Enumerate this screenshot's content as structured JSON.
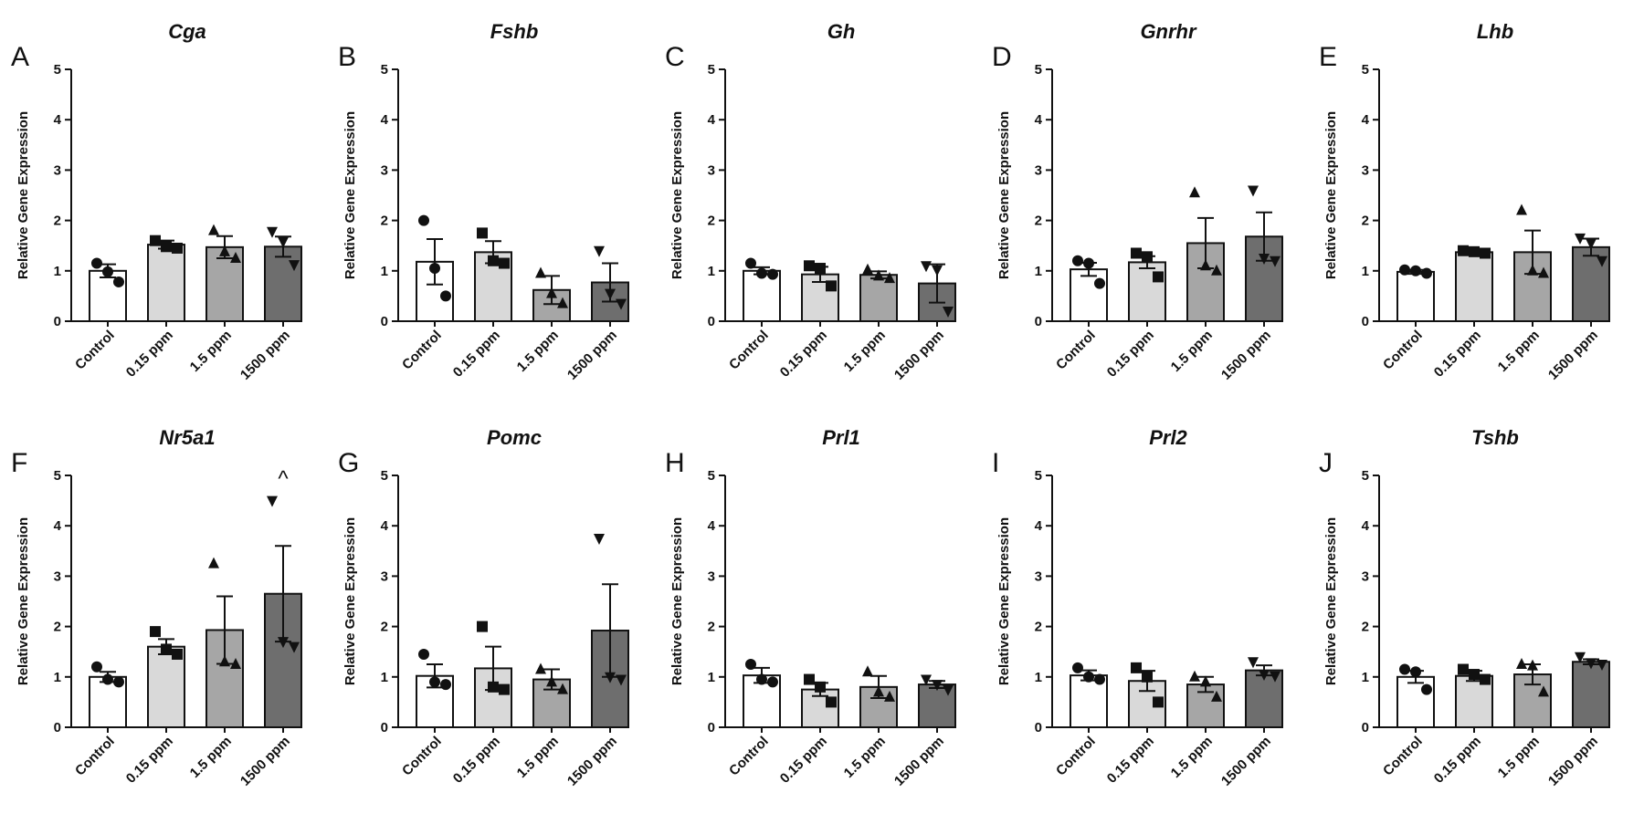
{
  "chart_data": [
    {
      "type": "bar",
      "panel": "A",
      "title": "Cga",
      "ylabel": "Relative Gene Expression",
      "ylim": [
        0,
        5
      ],
      "yticks": [
        0,
        1,
        2,
        3,
        4,
        5
      ],
      "categories": [
        "Control",
        "0.15 ppm",
        "1.5 ppm",
        "1500 ppm"
      ],
      "values": [
        1.0,
        1.52,
        1.47,
        1.48
      ],
      "errors": [
        0.13,
        0.08,
        0.22,
        0.2
      ],
      "points": [
        [
          1.15,
          0.98,
          0.78
        ],
        [
          1.6,
          1.48,
          1.45
        ],
        [
          1.8,
          1.38,
          1.25
        ],
        [
          1.78,
          1.58,
          1.12
        ]
      ],
      "bar_colors": [
        "#ffffff",
        "#d9d9d9",
        "#a6a6a6",
        "#6e6e6e"
      ],
      "markers": [
        "circle",
        "square",
        "triangle-up",
        "triangle-down"
      ],
      "annotation": "",
      "annotation_index": null
    },
    {
      "type": "bar",
      "panel": "B",
      "title": "Fshb",
      "ylabel": "Relative Gene Expression",
      "ylim": [
        0,
        5
      ],
      "yticks": [
        0,
        1,
        2,
        3,
        4,
        5
      ],
      "categories": [
        "Control",
        "0.15 ppm",
        "1.5 ppm",
        "1500 ppm"
      ],
      "values": [
        1.18,
        1.37,
        0.62,
        0.77
      ],
      "errors": [
        0.45,
        0.22,
        0.28,
        0.38
      ],
      "points": [
        [
          2.0,
          1.05,
          0.5
        ],
        [
          1.75,
          1.2,
          1.15
        ],
        [
          0.95,
          0.55,
          0.35
        ],
        [
          1.4,
          0.55,
          0.35
        ]
      ],
      "bar_colors": [
        "#ffffff",
        "#d9d9d9",
        "#a6a6a6",
        "#6e6e6e"
      ],
      "markers": [
        "circle",
        "square",
        "triangle-up",
        "triangle-down"
      ],
      "annotation": "",
      "annotation_index": null
    },
    {
      "type": "bar",
      "panel": "C",
      "title": "Gh",
      "ylabel": "Relative Gene Expression",
      "ylim": [
        0,
        5
      ],
      "yticks": [
        0,
        1,
        2,
        3,
        4,
        5
      ],
      "categories": [
        "Control",
        "0.15 ppm",
        "1.5 ppm",
        "1500 ppm"
      ],
      "values": [
        1.0,
        0.93,
        0.92,
        0.75
      ],
      "errors": [
        0.07,
        0.15,
        0.07,
        0.38
      ],
      "points": [
        [
          1.15,
          0.95,
          0.93
        ],
        [
          1.1,
          1.05,
          0.7
        ],
        [
          1.02,
          0.9,
          0.85
        ],
        [
          1.1,
          1.02,
          0.2
        ]
      ],
      "bar_colors": [
        "#ffffff",
        "#d9d9d9",
        "#a6a6a6",
        "#6e6e6e"
      ],
      "markers": [
        "circle",
        "square",
        "triangle-up",
        "triangle-down"
      ],
      "annotation": "",
      "annotation_index": null
    },
    {
      "type": "bar",
      "panel": "D",
      "title": "Gnrhr",
      "ylabel": "Relative Gene Expression",
      "ylim": [
        0,
        5
      ],
      "yticks": [
        0,
        1,
        2,
        3,
        4,
        5
      ],
      "categories": [
        "Control",
        "0.15 ppm",
        "1.5 ppm",
        "1500 ppm"
      ],
      "values": [
        1.03,
        1.17,
        1.55,
        1.68
      ],
      "errors": [
        0.13,
        0.12,
        0.5,
        0.48
      ],
      "points": [
        [
          1.2,
          1.15,
          0.75
        ],
        [
          1.35,
          1.28,
          0.88
        ],
        [
          2.55,
          1.1,
          1.0
        ],
        [
          2.6,
          1.25,
          1.2
        ]
      ],
      "bar_colors": [
        "#ffffff",
        "#d9d9d9",
        "#a6a6a6",
        "#6e6e6e"
      ],
      "markers": [
        "circle",
        "square",
        "triangle-up",
        "triangle-down"
      ],
      "annotation": "",
      "annotation_index": null
    },
    {
      "type": "bar",
      "panel": "E",
      "title": "Lhb",
      "ylabel": "Relative Gene Expression",
      "ylim": [
        0,
        5
      ],
      "yticks": [
        0,
        1,
        2,
        3,
        4,
        5
      ],
      "categories": [
        "Control",
        "0.15 ppm",
        "1.5 ppm",
        "1500 ppm"
      ],
      "values": [
        0.98,
        1.37,
        1.37,
        1.47
      ],
      "errors": [
        0.04,
        0.03,
        0.43,
        0.17
      ],
      "points": [
        [
          1.02,
          1.0,
          0.95
        ],
        [
          1.4,
          1.38,
          1.35
        ],
        [
          2.2,
          1.0,
          0.95
        ],
        [
          1.65,
          1.55,
          1.2
        ]
      ],
      "bar_colors": [
        "#ffffff",
        "#d9d9d9",
        "#a6a6a6",
        "#6e6e6e"
      ],
      "markers": [
        "circle",
        "square",
        "triangle-up",
        "triangle-down"
      ],
      "annotation": "",
      "annotation_index": null
    },
    {
      "type": "bar",
      "panel": "F",
      "title": "Nr5a1",
      "ylabel": "Relative Gene Expression",
      "ylim": [
        0,
        5
      ],
      "yticks": [
        0,
        1,
        2,
        3,
        4,
        5
      ],
      "categories": [
        "Control",
        "0.15 ppm",
        "1.5 ppm",
        "1500 ppm"
      ],
      "values": [
        1.0,
        1.6,
        1.93,
        2.65
      ],
      "errors": [
        0.1,
        0.15,
        0.67,
        0.95
      ],
      "points": [
        [
          1.2,
          0.95,
          0.9
        ],
        [
          1.9,
          1.55,
          1.45
        ],
        [
          3.25,
          1.3,
          1.25
        ],
        [
          4.5,
          1.7,
          1.6
        ]
      ],
      "bar_colors": [
        "#ffffff",
        "#d9d9d9",
        "#a6a6a6",
        "#6e6e6e"
      ],
      "markers": [
        "circle",
        "square",
        "triangle-up",
        "triangle-down"
      ],
      "annotation": "^",
      "annotation_index": 3
    },
    {
      "type": "bar",
      "panel": "G",
      "title": "Pomc",
      "ylabel": "Relative Gene Expression",
      "ylim": [
        0,
        5
      ],
      "yticks": [
        0,
        1,
        2,
        3,
        4,
        5
      ],
      "categories": [
        "Control",
        "0.15 ppm",
        "1.5 ppm",
        "1500 ppm"
      ],
      "values": [
        1.02,
        1.17,
        0.95,
        1.92
      ],
      "errors": [
        0.23,
        0.43,
        0.2,
        0.92
      ],
      "points": [
        [
          1.45,
          0.9,
          0.85
        ],
        [
          2.0,
          0.8,
          0.75
        ],
        [
          1.15,
          0.9,
          0.75
        ],
        [
          3.75,
          1.0,
          0.95
        ]
      ],
      "bar_colors": [
        "#ffffff",
        "#d9d9d9",
        "#a6a6a6",
        "#6e6e6e"
      ],
      "markers": [
        "circle",
        "square",
        "triangle-up",
        "triangle-down"
      ],
      "annotation": "",
      "annotation_index": null
    },
    {
      "type": "bar",
      "panel": "H",
      "title": "Prl1",
      "ylabel": "Relative Gene Expression",
      "ylim": [
        0,
        5
      ],
      "yticks": [
        0,
        1,
        2,
        3,
        4,
        5
      ],
      "categories": [
        "Control",
        "0.15 ppm",
        "1.5 ppm",
        "1500 ppm"
      ],
      "values": [
        1.03,
        0.75,
        0.8,
        0.85
      ],
      "errors": [
        0.15,
        0.13,
        0.22,
        0.07
      ],
      "points": [
        [
          1.25,
          0.95,
          0.9
        ],
        [
          0.95,
          0.8,
          0.5
        ],
        [
          1.1,
          0.7,
          0.6
        ],
        [
          0.95,
          0.85,
          0.75
        ]
      ],
      "bar_colors": [
        "#ffffff",
        "#d9d9d9",
        "#a6a6a6",
        "#6e6e6e"
      ],
      "markers": [
        "circle",
        "square",
        "triangle-up",
        "triangle-down"
      ],
      "annotation": "",
      "annotation_index": null
    },
    {
      "type": "bar",
      "panel": "I",
      "title": "Prl2",
      "ylabel": "Relative Gene Expression",
      "ylim": [
        0,
        5
      ],
      "yticks": [
        0,
        1,
        2,
        3,
        4,
        5
      ],
      "categories": [
        "Control",
        "0.15 ppm",
        "1.5 ppm",
        "1500 ppm"
      ],
      "values": [
        1.03,
        0.92,
        0.85,
        1.13
      ],
      "errors": [
        0.1,
        0.2,
        0.15,
        0.1
      ],
      "points": [
        [
          1.18,
          1.0,
          0.95
        ],
        [
          1.18,
          1.0,
          0.5
        ],
        [
          1.0,
          0.9,
          0.6
        ],
        [
          1.3,
          1.05,
          1.02
        ]
      ],
      "bar_colors": [
        "#ffffff",
        "#d9d9d9",
        "#a6a6a6",
        "#6e6e6e"
      ],
      "markers": [
        "circle",
        "square",
        "triangle-up",
        "triangle-down"
      ],
      "annotation": "",
      "annotation_index": null
    },
    {
      "type": "bar",
      "panel": "J",
      "title": "Tshb",
      "ylabel": "Relative Gene Expression",
      "ylim": [
        0,
        5
      ],
      "yticks": [
        0,
        1,
        2,
        3,
        4,
        5
      ],
      "categories": [
        "Control",
        "0.15 ppm",
        "1.5 ppm",
        "1500 ppm"
      ],
      "values": [
        1.0,
        1.02,
        1.05,
        1.3
      ],
      "errors": [
        0.12,
        0.1,
        0.2,
        0.05
      ],
      "points": [
        [
          1.15,
          1.1,
          0.75
        ],
        [
          1.15,
          1.05,
          0.95
        ],
        [
          1.25,
          1.22,
          0.7
        ],
        [
          1.4,
          1.28,
          1.25
        ]
      ],
      "bar_colors": [
        "#ffffff",
        "#d9d9d9",
        "#a6a6a6",
        "#6e6e6e"
      ],
      "markers": [
        "circle",
        "square",
        "triangle-up",
        "triangle-down"
      ],
      "annotation": "",
      "annotation_index": null
    }
  ]
}
